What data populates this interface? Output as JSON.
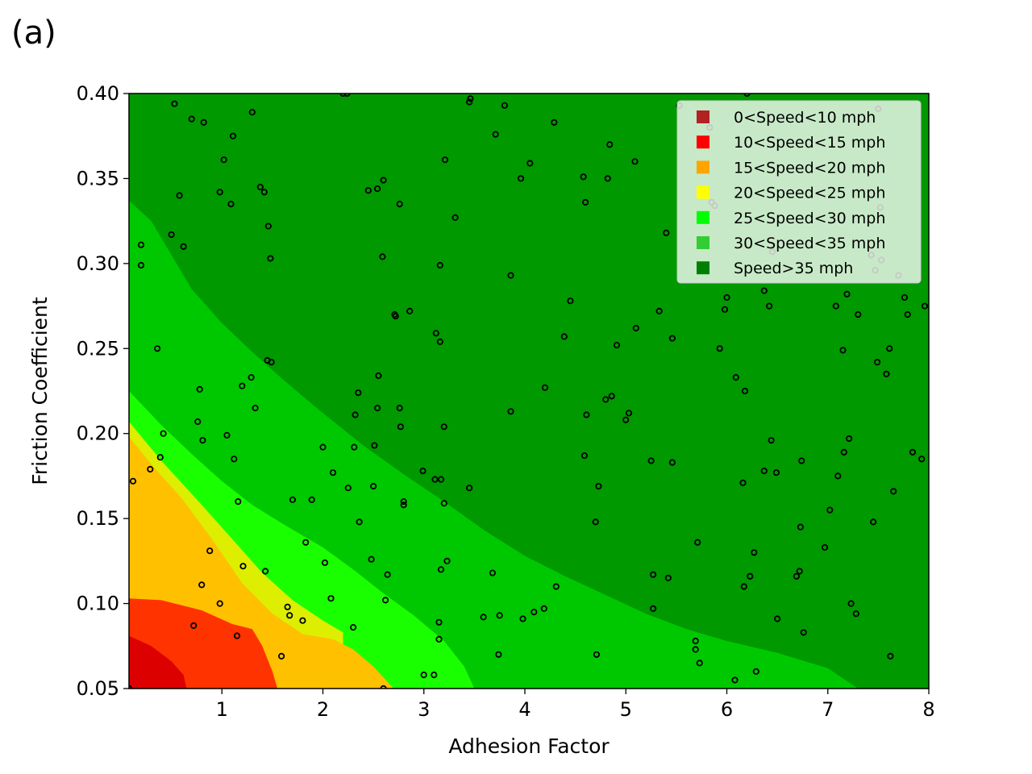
{
  "panel_label": "(a)",
  "chart_data": {
    "type": "heatmap",
    "title": "",
    "xlabel": "Adhesion Factor",
    "ylabel": "Friction Coefficient",
    "xlim": [
      0.08,
      8
    ],
    "ylim": [
      0.05,
      0.4
    ],
    "x_ticks": [
      1,
      2,
      3,
      4,
      5,
      6,
      7,
      8
    ],
    "x_tick_labels": [
      "1",
      "2",
      "3",
      "4",
      "5",
      "6",
      "7",
      "8"
    ],
    "y_ticks": [
      0.05,
      0.1,
      0.15,
      0.2,
      0.25,
      0.3,
      0.35,
      0.4
    ],
    "y_tick_labels": [
      "0.05",
      "0.10",
      "0.15",
      "0.20",
      "0.25",
      "0.30",
      "0.35",
      "0.40"
    ],
    "legend_position": "top-right",
    "legend": [
      {
        "label": "0<Speed<10 mph",
        "color": "#b22222"
      },
      {
        "label": "10<Speed<15 mph",
        "color": "#ff0000"
      },
      {
        "label": "15<Speed<20 mph",
        "color": "#ffa500"
      },
      {
        "label": "20<Speed<25 mph",
        "color": "#ffff00"
      },
      {
        "label": "25<Speed<30 mph",
        "color": "#00ff00"
      },
      {
        "label": "30<Speed<35 mph",
        "color": "#32cd32"
      },
      {
        "label": "Speed>35 mph",
        "color": "#008000"
      }
    ],
    "regions": [
      {
        "label": "Speed>35 mph",
        "fill": "#009900",
        "points": [
          [
            0.08,
            0.4
          ],
          [
            8,
            0.4
          ],
          [
            8,
            0.05
          ],
          [
            0.08,
            0.05
          ]
        ]
      },
      {
        "label": "30<Speed<35 mph",
        "fill": "#00c800",
        "points": [
          [
            0.08,
            0.05
          ],
          [
            0.08,
            0.337
          ],
          [
            0.3,
            0.325
          ],
          [
            0.5,
            0.305
          ],
          [
            0.7,
            0.285
          ],
          [
            1.0,
            0.265
          ],
          [
            1.3,
            0.248
          ],
          [
            1.6,
            0.232
          ],
          [
            2.0,
            0.212
          ],
          [
            2.4,
            0.193
          ],
          [
            2.8,
            0.176
          ],
          [
            3.2,
            0.16
          ],
          [
            3.6,
            0.143
          ],
          [
            4.0,
            0.128
          ],
          [
            4.4,
            0.116
          ],
          [
            4.8,
            0.105
          ],
          [
            5.2,
            0.094
          ],
          [
            5.6,
            0.085
          ],
          [
            6.0,
            0.078
          ],
          [
            6.5,
            0.071
          ],
          [
            7.0,
            0.062
          ],
          [
            7.3,
            0.05
          ]
        ]
      },
      {
        "label": "25<Speed<30 mph",
        "fill": "#1aff00",
        "points": [
          [
            0.08,
            0.05
          ],
          [
            0.08,
            0.225
          ],
          [
            0.4,
            0.205
          ],
          [
            0.7,
            0.188
          ],
          [
            1.0,
            0.172
          ],
          [
            1.3,
            0.158
          ],
          [
            1.6,
            0.147
          ],
          [
            2.0,
            0.133
          ],
          [
            2.3,
            0.12
          ],
          [
            2.6,
            0.106
          ],
          [
            2.9,
            0.093
          ],
          [
            3.2,
            0.078
          ],
          [
            3.4,
            0.063
          ],
          [
            3.5,
            0.05
          ]
        ]
      },
      {
        "label": "20<Speed<25 mph",
        "fill": "#ddee00",
        "points": [
          [
            0.08,
            0.05
          ],
          [
            0.08,
            0.207
          ],
          [
            0.4,
            0.184
          ],
          [
            0.8,
            0.158
          ],
          [
            1.1,
            0.138
          ],
          [
            1.4,
            0.118
          ],
          [
            1.7,
            0.102
          ],
          [
            2.0,
            0.09
          ],
          [
            2.2,
            0.083
          ],
          [
            2.2,
            0.05
          ]
        ]
      },
      {
        "label": "15<Speed<20 mph",
        "fill": "#ffc000",
        "points": [
          [
            0.08,
            0.05
          ],
          [
            0.08,
            0.198
          ],
          [
            0.3,
            0.182
          ],
          [
            0.6,
            0.162
          ],
          [
            0.9,
            0.138
          ],
          [
            1.2,
            0.112
          ],
          [
            1.5,
            0.094
          ],
          [
            1.8,
            0.082
          ],
          [
            2.1,
            0.079
          ],
          [
            2.3,
            0.073
          ],
          [
            2.5,
            0.063
          ],
          [
            2.7,
            0.05
          ]
        ]
      },
      {
        "label": "10<Speed<15 mph",
        "fill": "#ff3300",
        "points": [
          [
            0.08,
            0.05
          ],
          [
            0.08,
            0.103
          ],
          [
            0.4,
            0.102
          ],
          [
            0.8,
            0.096
          ],
          [
            1.1,
            0.088
          ],
          [
            1.3,
            0.085
          ],
          [
            1.4,
            0.075
          ],
          [
            1.5,
            0.06
          ],
          [
            1.55,
            0.05
          ]
        ]
      },
      {
        "label": "0<Speed<10 mph",
        "fill": "#dd0000",
        "points": [
          [
            0.08,
            0.05
          ],
          [
            0.08,
            0.081
          ],
          [
            0.3,
            0.075
          ],
          [
            0.5,
            0.066
          ],
          [
            0.62,
            0.058
          ],
          [
            0.65,
            0.05
          ]
        ]
      }
    ],
    "scatter": [
      [
        0.08,
        0.05
      ],
      [
        0.12,
        0.172
      ],
      [
        0.2,
        0.311
      ],
      [
        0.2,
        0.299
      ],
      [
        0.29,
        0.179
      ],
      [
        0.36,
        0.25
      ],
      [
        0.39,
        0.186
      ],
      [
        0.42,
        0.2
      ],
      [
        0.5,
        0.317
      ],
      [
        0.53,
        0.394
      ],
      [
        0.58,
        0.34
      ],
      [
        0.62,
        0.31
      ],
      [
        0.7,
        0.385
      ],
      [
        0.72,
        0.087
      ],
      [
        0.76,
        0.207
      ],
      [
        0.78,
        0.226
      ],
      [
        0.8,
        0.111
      ],
      [
        0.81,
        0.196
      ],
      [
        0.82,
        0.383
      ],
      [
        0.88,
        0.131
      ],
      [
        0.98,
        0.342
      ],
      [
        0.98,
        0.1
      ],
      [
        1.02,
        0.361
      ],
      [
        1.05,
        0.199
      ],
      [
        1.09,
        0.335
      ],
      [
        1.11,
        0.375
      ],
      [
        1.12,
        0.185
      ],
      [
        1.15,
        0.081
      ],
      [
        1.16,
        0.16
      ],
      [
        1.2,
        0.228
      ],
      [
        1.21,
        0.122
      ],
      [
        1.29,
        0.233
      ],
      [
        1.3,
        0.389
      ],
      [
        1.33,
        0.215
      ],
      [
        1.38,
        0.345
      ],
      [
        1.42,
        0.342
      ],
      [
        1.43,
        0.119
      ],
      [
        1.45,
        0.243
      ],
      [
        1.46,
        0.322
      ],
      [
        1.48,
        0.303
      ],
      [
        1.49,
        0.242
      ],
      [
        1.59,
        0.069
      ],
      [
        1.65,
        0.098
      ],
      [
        1.67,
        0.093
      ],
      [
        1.7,
        0.161
      ],
      [
        1.8,
        0.09
      ],
      [
        1.83,
        0.136
      ],
      [
        1.89,
        0.161
      ],
      [
        2.0,
        0.192
      ],
      [
        2.02,
        0.124
      ],
      [
        2.08,
        0.103
      ],
      [
        2.1,
        0.177
      ],
      [
        2.2,
        0.4
      ],
      [
        2.24,
        0.4
      ],
      [
        2.25,
        0.168
      ],
      [
        2.3,
        0.086
      ],
      [
        2.31,
        0.192
      ],
      [
        2.32,
        0.211
      ],
      [
        2.35,
        0.224
      ],
      [
        2.36,
        0.148
      ],
      [
        2.45,
        0.343
      ],
      [
        2.48,
        0.126
      ],
      [
        2.5,
        0.169
      ],
      [
        2.51,
        0.193
      ],
      [
        2.54,
        0.215
      ],
      [
        2.54,
        0.344
      ],
      [
        2.55,
        0.234
      ],
      [
        2.59,
        0.304
      ],
      [
        2.6,
        0.349
      ],
      [
        2.6,
        0.05
      ],
      [
        2.62,
        0.102
      ],
      [
        2.64,
        0.117
      ],
      [
        2.71,
        0.27
      ],
      [
        2.72,
        0.269
      ],
      [
        2.76,
        0.335
      ],
      [
        2.76,
        0.215
      ],
      [
        2.77,
        0.204
      ],
      [
        2.8,
        0.16
      ],
      [
        2.8,
        0.158
      ],
      [
        2.86,
        0.272
      ],
      [
        2.99,
        0.178
      ],
      [
        3.0,
        0.058
      ],
      [
        3.1,
        0.058
      ],
      [
        3.11,
        0.173
      ],
      [
        3.12,
        0.259
      ],
      [
        3.15,
        0.089
      ],
      [
        3.15,
        0.079
      ],
      [
        3.16,
        0.254
      ],
      [
        3.16,
        0.299
      ],
      [
        3.17,
        0.12
      ],
      [
        3.17,
        0.173
      ],
      [
        3.2,
        0.159
      ],
      [
        3.2,
        0.204
      ],
      [
        3.21,
        0.361
      ],
      [
        3.23,
        0.125
      ],
      [
        3.31,
        0.327
      ],
      [
        3.45,
        0.168
      ],
      [
        3.45,
        0.395
      ],
      [
        3.46,
        0.397
      ],
      [
        3.59,
        0.092
      ],
      [
        3.68,
        0.118
      ],
      [
        3.71,
        0.376
      ],
      [
        3.74,
        0.07
      ],
      [
        3.75,
        0.093
      ],
      [
        3.8,
        0.393
      ],
      [
        3.86,
        0.213
      ],
      [
        3.86,
        0.293
      ],
      [
        3.96,
        0.35
      ],
      [
        3.98,
        0.091
      ],
      [
        4.05,
        0.359
      ],
      [
        4.09,
        0.095
      ],
      [
        4.19,
        0.097
      ],
      [
        4.2,
        0.227
      ],
      [
        4.29,
        0.383
      ],
      [
        4.31,
        0.11
      ],
      [
        4.39,
        0.257
      ],
      [
        4.45,
        0.278
      ],
      [
        4.58,
        0.351
      ],
      [
        4.59,
        0.187
      ],
      [
        4.6,
        0.336
      ],
      [
        4.61,
        0.211
      ],
      [
        4.7,
        0.148
      ],
      [
        4.71,
        0.07
      ],
      [
        4.73,
        0.169
      ],
      [
        4.8,
        0.22
      ],
      [
        4.82,
        0.35
      ],
      [
        4.84,
        0.37
      ],
      [
        4.86,
        0.222
      ],
      [
        4.91,
        0.252
      ],
      [
        5.0,
        0.208
      ],
      [
        5.03,
        0.212
      ],
      [
        5.09,
        0.36
      ],
      [
        5.1,
        0.262
      ],
      [
        5.25,
        0.184
      ],
      [
        5.27,
        0.117
      ],
      [
        5.27,
        0.097
      ],
      [
        5.33,
        0.272
      ],
      [
        5.4,
        0.318
      ],
      [
        5.42,
        0.115
      ],
      [
        5.46,
        0.256
      ],
      [
        5.46,
        0.183
      ],
      [
        5.53,
        0.393
      ],
      [
        5.69,
        0.078
      ],
      [
        5.69,
        0.073
      ],
      [
        5.71,
        0.136
      ],
      [
        5.73,
        0.065
      ],
      [
        5.83,
        0.38
      ],
      [
        5.85,
        0.336
      ],
      [
        5.88,
        0.334
      ],
      [
        5.93,
        0.25
      ],
      [
        5.98,
        0.273
      ],
      [
        6.0,
        0.28
      ],
      [
        6.08,
        0.055
      ],
      [
        6.09,
        0.233
      ],
      [
        6.16,
        0.171
      ],
      [
        6.17,
        0.11
      ],
      [
        6.18,
        0.225
      ],
      [
        6.2,
        0.4
      ],
      [
        6.23,
        0.116
      ],
      [
        6.27,
        0.13
      ],
      [
        6.29,
        0.06
      ],
      [
        6.37,
        0.284
      ],
      [
        6.37,
        0.178
      ],
      [
        6.42,
        0.275
      ],
      [
        6.44,
        0.196
      ],
      [
        6.45,
        0.307
      ],
      [
        6.49,
        0.177
      ],
      [
        6.5,
        0.091
      ],
      [
        6.69,
        0.116
      ],
      [
        6.72,
        0.119
      ],
      [
        6.73,
        0.145
      ],
      [
        6.74,
        0.184
      ],
      [
        6.76,
        0.083
      ],
      [
        6.97,
        0.133
      ],
      [
        7.02,
        0.155
      ],
      [
        7.08,
        0.275
      ],
      [
        7.1,
        0.175
      ],
      [
        7.15,
        0.249
      ],
      [
        7.16,
        0.189
      ],
      [
        7.19,
        0.282
      ],
      [
        7.21,
        0.197
      ],
      [
        7.23,
        0.1
      ],
      [
        7.28,
        0.094
      ],
      [
        7.3,
        0.27
      ],
      [
        7.43,
        0.305
      ],
      [
        7.45,
        0.148
      ],
      [
        7.47,
        0.296
      ],
      [
        7.49,
        0.242
      ],
      [
        7.5,
        0.391
      ],
      [
        7.52,
        0.333
      ],
      [
        7.53,
        0.302
      ],
      [
        7.58,
        0.235
      ],
      [
        7.61,
        0.25
      ],
      [
        7.62,
        0.069
      ],
      [
        7.65,
        0.166
      ],
      [
        7.7,
        0.293
      ],
      [
        7.76,
        0.28
      ],
      [
        7.79,
        0.27
      ],
      [
        7.84,
        0.189
      ],
      [
        7.93,
        0.185
      ],
      [
        7.96,
        0.275
      ]
    ]
  }
}
